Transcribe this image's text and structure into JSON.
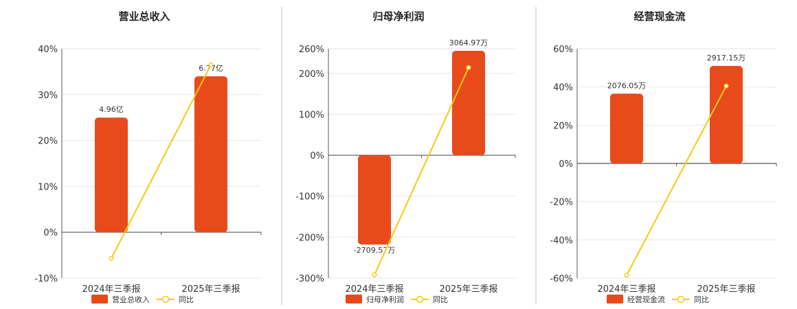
{
  "colors": {
    "bar": "#E84A1C",
    "line": "#F2CB12",
    "grid": "#e6e6e6",
    "axis": "#555555",
    "divider": "#bdbdbd"
  },
  "chart_data": [
    {
      "type": "bar",
      "title": "营业总收入",
      "categories": [
        "2024年三季报",
        "2025年三季报"
      ],
      "ylim": [
        -10,
        40
      ],
      "yticks": [
        -10,
        0,
        10,
        20,
        30,
        40
      ],
      "tick_labels": [
        "-10%",
        "0%",
        "10%",
        "20%",
        "30%",
        "40%"
      ],
      "series": [
        {
          "name": "营业总收入",
          "kind": "bar",
          "values": [
            25,
            34
          ],
          "labels": [
            "4.96亿",
            "6.77亿"
          ]
        },
        {
          "name": "同比",
          "kind": "line",
          "values": [
            -5.7,
            36.5
          ]
        }
      ],
      "legend": "bottom",
      "grid": true
    },
    {
      "type": "bar",
      "title": "归母净利润",
      "categories": [
        "2024年三季报",
        "2025年三季报"
      ],
      "ylim": [
        -300,
        260
      ],
      "yticks": [
        -300,
        -200,
        -100,
        0,
        100,
        200,
        260
      ],
      "tick_labels": [
        "-300%",
        "-200%",
        "-100%",
        "0%",
        "100%",
        "200%",
        "260%"
      ],
      "series": [
        {
          "name": "归母净利润",
          "kind": "bar",
          "values": [
            -218,
            255
          ],
          "labels": [
            "-2709.57万",
            "3064.97万"
          ]
        },
        {
          "name": "同比",
          "kind": "line",
          "values": [
            -292,
            214
          ]
        }
      ],
      "legend": "bottom",
      "grid": true
    },
    {
      "type": "bar",
      "title": "经营现金流",
      "categories": [
        "2024年三季报",
        "2025年三季报"
      ],
      "ylim": [
        -60,
        60
      ],
      "yticks": [
        -60,
        -40,
        -20,
        0,
        20,
        40,
        60
      ],
      "tick_labels": [
        "-60%",
        "-40%",
        "-20%",
        "0%",
        "20%",
        "40%",
        "60%"
      ],
      "series": [
        {
          "name": "经营现金流",
          "kind": "bar",
          "values": [
            36.5,
            51
          ],
          "labels": [
            "2076.05万",
            "2917.15万"
          ]
        },
        {
          "name": "同比",
          "kind": "line",
          "values": [
            -58.5,
            40.5
          ]
        }
      ],
      "legend": "bottom",
      "grid": true
    }
  ]
}
